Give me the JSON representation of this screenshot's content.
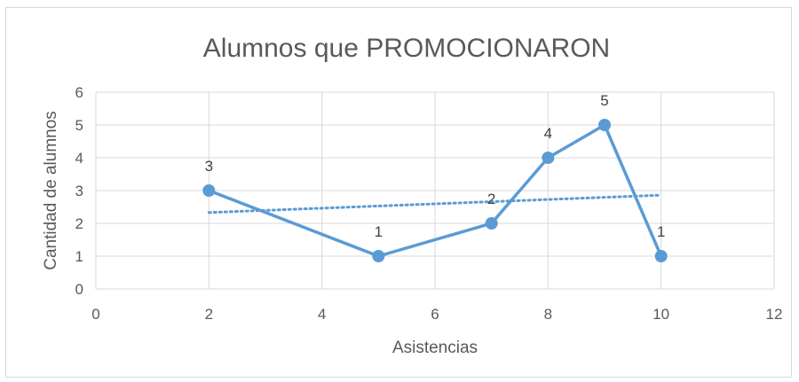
{
  "chart_data": {
    "type": "scatter",
    "title": "Alumnos que PROMOCIONARON",
    "xlabel": "Asistencias",
    "ylabel": "Cantidad de alumnos",
    "xlim": [
      0,
      12
    ],
    "ylim": [
      0,
      6
    ],
    "xticks": [
      0,
      2,
      4,
      6,
      8,
      10,
      12
    ],
    "yticks": [
      0,
      1,
      2,
      3,
      4,
      5,
      6
    ],
    "grid": true,
    "legend": "none",
    "series": [
      {
        "points": [
          {
            "x": 2,
            "y": 3
          },
          {
            "x": 5,
            "y": 1
          },
          {
            "x": 7,
            "y": 2
          },
          {
            "x": 8,
            "y": 4
          },
          {
            "x": 9,
            "y": 5
          },
          {
            "x": 10,
            "y": 1
          }
        ],
        "data_labels": [
          "3",
          "1",
          "2",
          "4",
          "5",
          "1"
        ],
        "color": "#5b9bd5",
        "marker": "circle",
        "line": "solid"
      }
    ],
    "trendline": {
      "type": "linear",
      "style": "dotted",
      "color": "#5b9bd5",
      "x_start": 2,
      "x_end": 10,
      "y_start": 2.33,
      "y_end": 2.86
    }
  }
}
